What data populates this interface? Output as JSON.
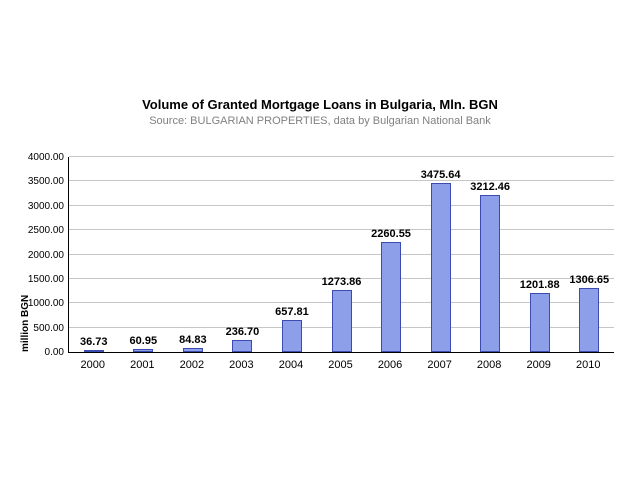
{
  "chart_data": {
    "type": "bar",
    "title": "Volume of Granted Mortgage Loans in Bulgaria, Mln. BGN",
    "subtitle": "Source: BULGARIAN PROPERTIES, data by Bulgarian National Bank",
    "categories": [
      "2000",
      "2001",
      "2002",
      "2003",
      "2004",
      "2005",
      "2006",
      "2007",
      "2008",
      "2009",
      "2010"
    ],
    "values": [
      36.73,
      60.95,
      84.83,
      236.7,
      657.81,
      1273.86,
      2260.55,
      3475.64,
      3212.46,
      1201.88,
      1306.65
    ],
    "data_labels": [
      "36.73",
      "60.95",
      "84.83",
      "236.70",
      "657.81",
      "1273.86",
      "2260.55",
      "3475.64",
      "3212.46",
      "1201.88",
      "1306.65"
    ],
    "xlabel": "",
    "ylabel": "million BGN",
    "ylim": [
      0,
      4000
    ],
    "ytick_step": 500,
    "ytick_labels": [
      "0.00",
      "500.00",
      "1000.00",
      "1500.00",
      "2000.00",
      "2500.00",
      "3000.00",
      "3500.00",
      "4000.00"
    ],
    "grid": true,
    "legend": false,
    "bar_color": "#8c9fe8",
    "bar_border_color": "#3a4cb0",
    "gridline_color": "#c6c6c6",
    "subtitle_color": "#808080"
  }
}
